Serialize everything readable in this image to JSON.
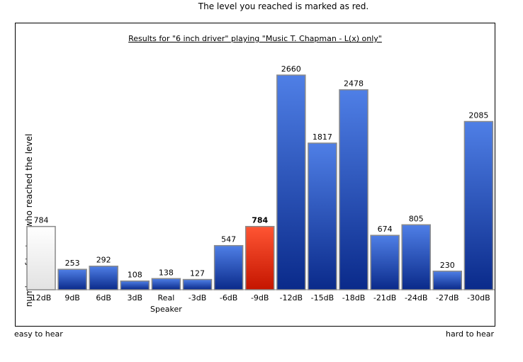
{
  "page": {
    "top_note": "The level you reached is marked as red.",
    "easy_label": "easy to hear",
    "hard_label": "hard to hear"
  },
  "chart_data": {
    "type": "bar",
    "title": "Results for \"6 inch driver\" playing \"Music T. Chapman - L(x) only\"",
    "ylabel": "number of testers who reached the level",
    "xlabel": "",
    "categories": [
      "12dB",
      "9dB",
      "6dB",
      "3dB",
      "Real Speaker",
      "-3dB",
      "-6dB",
      "-9dB",
      "-12dB",
      "-15dB",
      "-18dB",
      "-21dB",
      "-24dB",
      "-27dB",
      "-30dB"
    ],
    "values": [
      784,
      253,
      292,
      108,
      138,
      127,
      547,
      784,
      2660,
      1817,
      2478,
      674,
      805,
      230,
      2085
    ],
    "highlight_index": 7,
    "bar_styles": [
      "white",
      "blue",
      "blue",
      "blue",
      "blue",
      "blue",
      "blue",
      "red",
      "blue",
      "blue",
      "blue",
      "blue",
      "blue",
      "blue",
      "blue"
    ],
    "colors": {
      "blue_top": "#4f7fe6",
      "blue_bottom": "#0a2a8a",
      "red_top": "#ff5533",
      "red_bottom": "#c41500",
      "white_top": "#ffffff",
      "white_bottom": "#e2e2e2",
      "bar_border": "#8a8a8a"
    },
    "ylim": [
      0,
      2660
    ],
    "grid": false,
    "legend": "none"
  }
}
